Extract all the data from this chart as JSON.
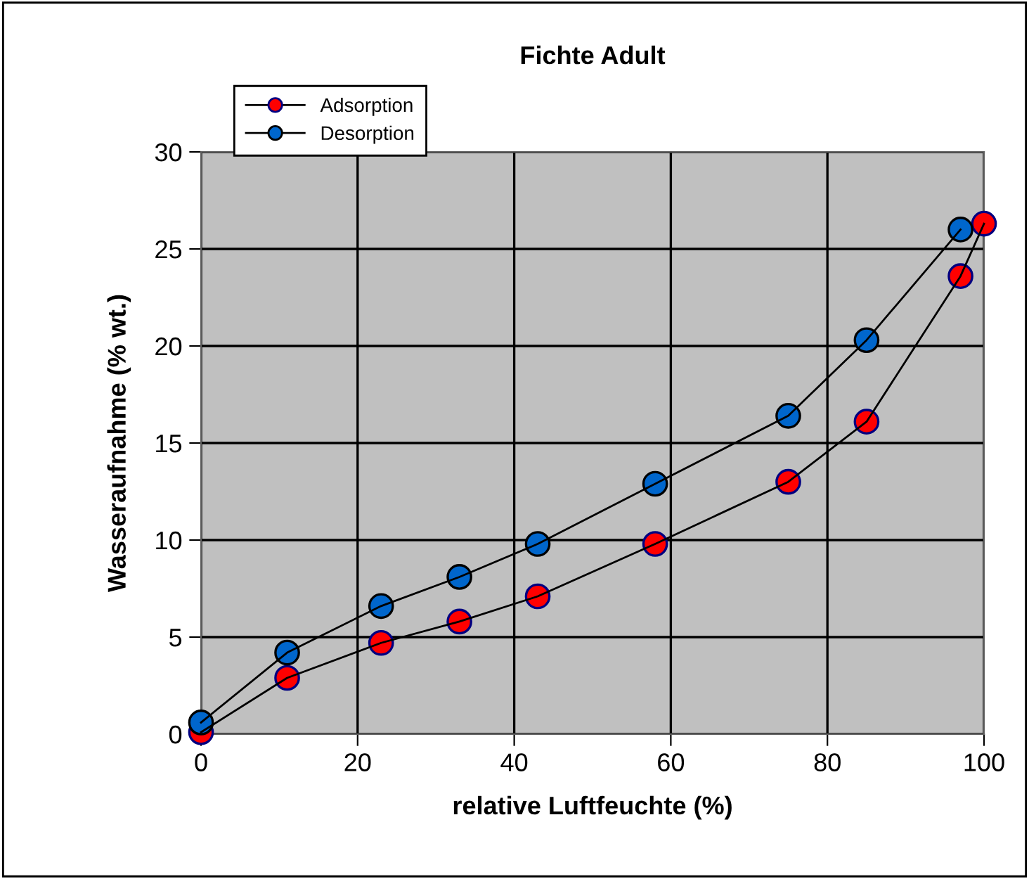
{
  "chart_data": {
    "type": "line",
    "title": "Fichte Adult",
    "xlabel": "relative Luftfeuchte (%)",
    "ylabel": "Wasseraufnahme (% wt.)",
    "xlim": [
      0,
      100
    ],
    "xticks": [
      0,
      20,
      40,
      60,
      80,
      100
    ],
    "ylim": [
      0,
      30
    ],
    "yticks": [
      0,
      5,
      10,
      15,
      20,
      25,
      30
    ],
    "grid": true,
    "legend": "top left",
    "marker": "circle",
    "line_style": "solid",
    "series": [
      {
        "name": "Adsorption",
        "color": "#ff0000",
        "x": [
          0,
          11,
          23,
          33,
          43,
          58,
          75,
          85,
          97,
          100
        ],
        "values": [
          0.1,
          2.9,
          4.7,
          5.8,
          7.1,
          9.8,
          13.0,
          16.1,
          23.6,
          26.3
        ]
      },
      {
        "name": "Desorption",
        "color": "#0066cc",
        "x": [
          0,
          11,
          23,
          33,
          43,
          58,
          75,
          85,
          97
        ],
        "values": [
          0.6,
          4.2,
          6.6,
          8.1,
          9.8,
          12.9,
          16.4,
          20.3,
          26.0
        ]
      }
    ]
  }
}
